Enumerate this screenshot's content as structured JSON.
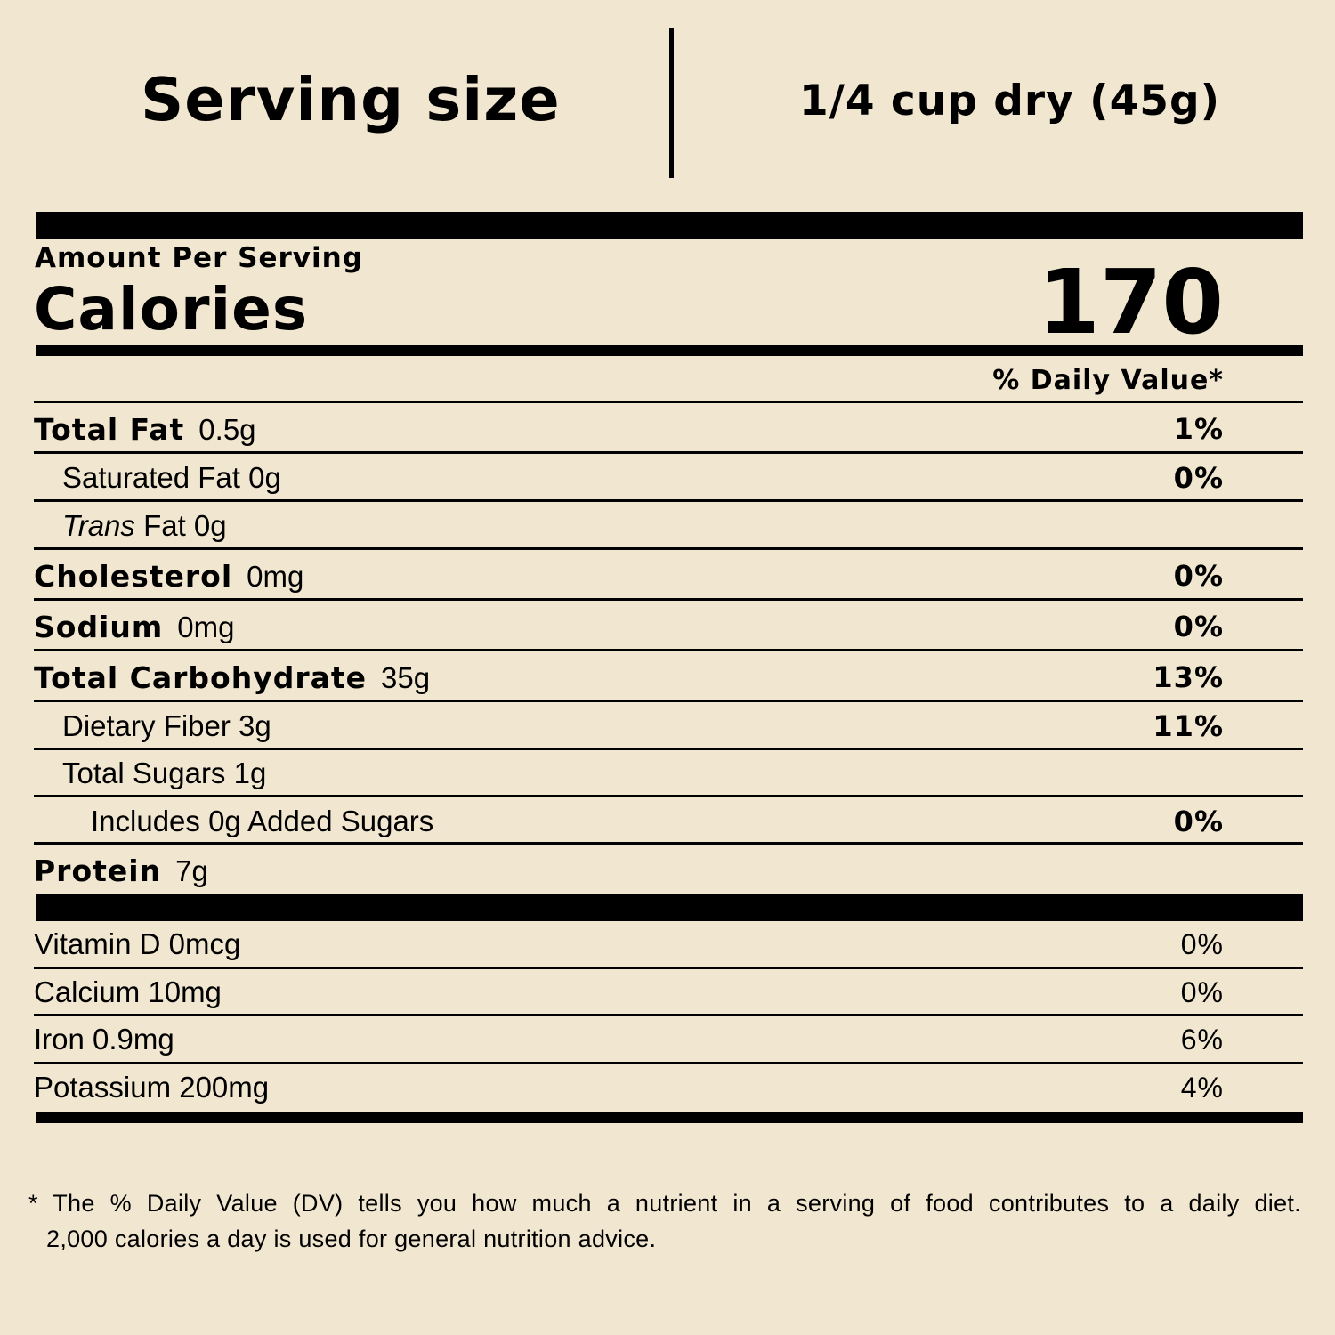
{
  "serving": {
    "label": "Serving size",
    "value": "1/4 cup dry (45g)"
  },
  "amount_per_serving": "Amount Per Serving",
  "calories": {
    "label": "Calories",
    "value": "170"
  },
  "dv_header": "% Daily Value*",
  "nutrients": [
    {
      "name": "Total Fat",
      "amount": "0.5g",
      "dv": "1%"
    },
    {
      "name": "Saturated Fat 0g",
      "dv": "0%"
    },
    {
      "prefix": "Trans",
      "name": " Fat 0g"
    },
    {
      "name": "Cholesterol",
      "amount": "0mg",
      "dv": "0%"
    },
    {
      "name": "Sodium",
      "amount": "0mg",
      "dv": "0%"
    },
    {
      "name": "Total Carbohydrate",
      "amount": "35g",
      "dv": "13%"
    },
    {
      "name": "Dietary Fiber 3g",
      "dv": "11%"
    },
    {
      "name": "Total Sugars 1g"
    },
    {
      "name": "Includes 0g Added Sugars",
      "dv": "0%"
    },
    {
      "name": "Protein",
      "amount": "7g"
    }
  ],
  "vitamins": [
    {
      "name": "Vitamin D 0mcg",
      "dv": "0%"
    },
    {
      "name": "Calcium 10mg",
      "dv": "0%"
    },
    {
      "name": "Iron 0.9mg",
      "dv": "6%"
    },
    {
      "name": "Potassium 200mg",
      "dv": "4%"
    }
  ],
  "footnote": {
    "line1": "* The % Daily Value (DV) tells you how much a nutrient in a serving of food contributes to a daily diet.",
    "line2": "2,000 calories a day is used for general nutrition advice."
  }
}
